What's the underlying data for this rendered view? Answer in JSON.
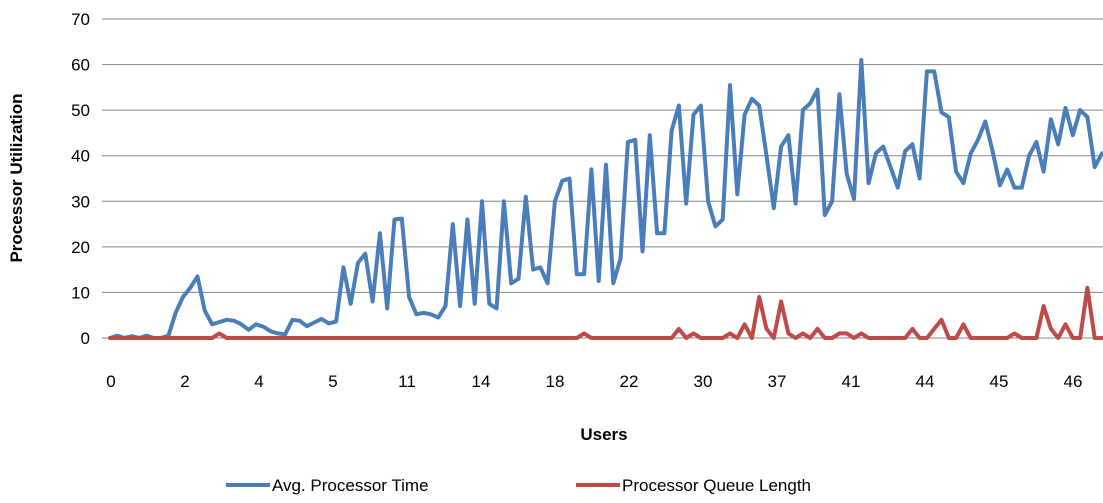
{
  "chart_data": {
    "type": "line",
    "xlabel": "Users",
    "ylabel": "Processor Utilization",
    "ylim": [
      0,
      70
    ],
    "y_ticks": [
      0,
      10,
      20,
      30,
      40,
      50,
      60,
      70
    ],
    "x_tick_labels": [
      "0",
      "2",
      "4",
      "5",
      "11",
      "14",
      "18",
      "22",
      "30",
      "37",
      "41",
      "44",
      "45",
      "46"
    ],
    "grid": "horizontal",
    "legend_position": "bottom",
    "series": [
      {
        "name": "Avg. Processor Time",
        "color": "#4a7ebb",
        "values": [
          0,
          0.5,
          0,
          0.4,
          0,
          0.5,
          0,
          0,
          0.5,
          5.5,
          9,
          11,
          13.5,
          6,
          3,
          3.5,
          4,
          3.8,
          3,
          1.8,
          3,
          2.5,
          1.5,
          1,
          0.8,
          4,
          3.8,
          2.6,
          3.4,
          4.2,
          3.2,
          3.6,
          15.5,
          7.5,
          16.5,
          18.5,
          8,
          23,
          6.5,
          26,
          26.2,
          9,
          5.2,
          5.5,
          5.2,
          4.5,
          7,
          25,
          7,
          26,
          7.5,
          30,
          7.5,
          6.5,
          30,
          12,
          13,
          31,
          15,
          15.5,
          12,
          30,
          34.5,
          35,
          14,
          14,
          37,
          12.5,
          38,
          12,
          17.5,
          43,
          43.5,
          19,
          44.5,
          23,
          23,
          45.5,
          51,
          29.5,
          49,
          51,
          30,
          24.5,
          26,
          55.5,
          31.5,
          49,
          52.5,
          51,
          40,
          28.5,
          42,
          44.5,
          29.5,
          50,
          51.5,
          54.5,
          27,
          30,
          53.5,
          36,
          30.5,
          61,
          34,
          40.5,
          42,
          37.5,
          33,
          41,
          42.5,
          35,
          58.5,
          58.5,
          49.5,
          48.5,
          36.5,
          34,
          40.5,
          43.5,
          47.5,
          41,
          33.5,
          37,
          33,
          33,
          40,
          43,
          36.5,
          48,
          42.5,
          50.5,
          44.5,
          50,
          48.5,
          37.5,
          40.5
        ]
      },
      {
        "name": "Processor Queue Length",
        "color": "#be4b48",
        "values": [
          0,
          0,
          0,
          0,
          0,
          0,
          0,
          0,
          0,
          0,
          0,
          0,
          0,
          0,
          0,
          1,
          0,
          0,
          0,
          0,
          0,
          0,
          0,
          0,
          0,
          0,
          0,
          0,
          0,
          0,
          0,
          0,
          0,
          0,
          0,
          0,
          0,
          0,
          0,
          0,
          0,
          0,
          0,
          0,
          0,
          0,
          0,
          0,
          0,
          0,
          0,
          0,
          0,
          0,
          0,
          0,
          0,
          0,
          0,
          0,
          0,
          0,
          0,
          0,
          0,
          1,
          0,
          0,
          0,
          0,
          0,
          0,
          0,
          0,
          0,
          0,
          0,
          0,
          2,
          0,
          1,
          0,
          0,
          0,
          0,
          1,
          0,
          3,
          0,
          9,
          2,
          0,
          8,
          1,
          0,
          1,
          0,
          2,
          0,
          0,
          1,
          1,
          0,
          1,
          0,
          0,
          0,
          0,
          0,
          0,
          2,
          0,
          0,
          2,
          4,
          0,
          0,
          3,
          0,
          0,
          0,
          0,
          0,
          0,
          1,
          0,
          0,
          0,
          7,
          2,
          0,
          3,
          0,
          0,
          11,
          0,
          0
        ]
      }
    ]
  }
}
